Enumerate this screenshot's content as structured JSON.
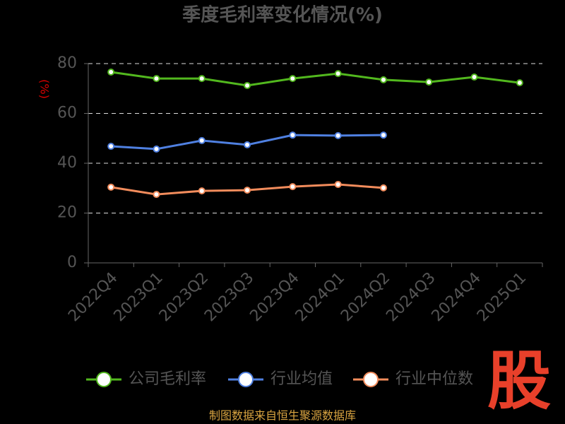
{
  "chart_data": {
    "type": "line",
    "title": "季度毛利率变化情况(%)",
    "y_label": "(%)",
    "categories": [
      "2022Q4",
      "2023Q1",
      "2023Q2",
      "2023Q3",
      "2023Q4",
      "2024Q1",
      "2024Q2",
      "2024Q3",
      "2024Q4",
      "2025Q1"
    ],
    "series": [
      {
        "name": "公司毛利率",
        "color": "#52b81e",
        "values": [
          76.6,
          74.0,
          74.0,
          71.2,
          74.0,
          76.0,
          73.5,
          72.6,
          74.6,
          72.3
        ]
      },
      {
        "name": "行业均值",
        "color": "#4f80e1",
        "values": [
          46.8,
          45.7,
          49.1,
          47.4,
          51.3,
          51.1,
          51.3,
          null,
          null,
          null
        ]
      },
      {
        "name": "行业中位数",
        "color": "#f28c5c",
        "values": [
          30.4,
          27.5,
          28.9,
          29.2,
          30.6,
          31.5,
          30.1,
          null,
          null,
          null
        ]
      }
    ],
    "ylim": [
      0,
      80
    ],
    "yticks": [
      0,
      20,
      40,
      60,
      80
    ],
    "grid": true,
    "source": "制图数据来自恒生聚源数据库",
    "watermark": "股"
  }
}
